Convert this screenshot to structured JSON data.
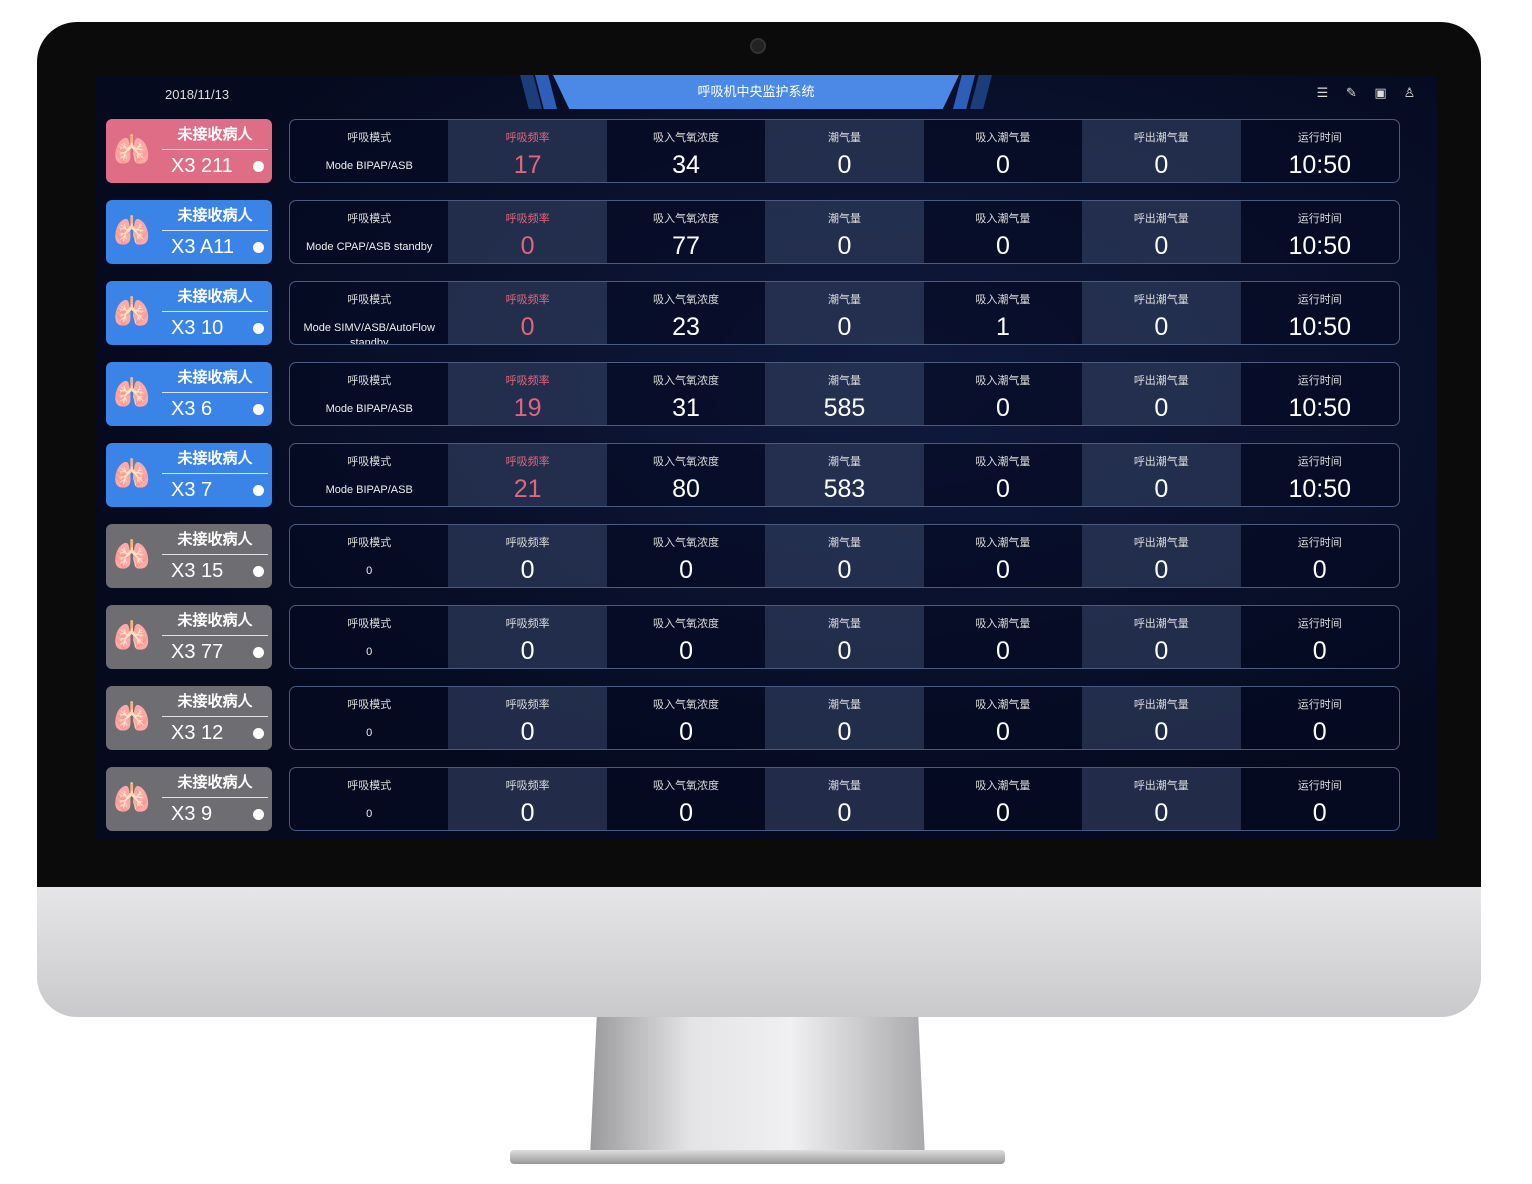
{
  "header": {
    "date": "2018/11/13",
    "title": "呼吸机中央监护系统",
    "icons": [
      "list-icon",
      "edit-icon",
      "layout-icon",
      "user-icon"
    ]
  },
  "colors": {
    "pink": "#df6d86",
    "blue": "#3a84e8",
    "gray": "#6e6e72",
    "alert_text": "#e0657e",
    "title_bar": "#4a8ae6"
  },
  "columns": [
    "呼吸模式",
    "呼吸频率",
    "吸入气氧浓度",
    "潮气量",
    "吸入潮气量",
    "呼出潮气量",
    "运行时间"
  ],
  "rows": [
    {
      "status": "未接收病人",
      "bed": "X3 211",
      "color": "pink",
      "mode": "Mode BIPAP/ASB",
      "values": [
        "17",
        "34",
        "0",
        "0",
        "0",
        "10:50"
      ],
      "alert": true
    },
    {
      "status": "未接收病人",
      "bed": "X3 A11",
      "color": "blue",
      "mode": "Mode CPAP/ASB standby",
      "values": [
        "0",
        "77",
        "0",
        "0",
        "0",
        "10:50"
      ],
      "alert": true
    },
    {
      "status": "未接收病人",
      "bed": "X3 10",
      "color": "blue",
      "mode": "Mode SIMV/ASB/AutoFlow standby",
      "values": [
        "0",
        "23",
        "0",
        "1",
        "0",
        "10:50"
      ],
      "alert": true
    },
    {
      "status": "未接收病人",
      "bed": "X3 6",
      "color": "blue",
      "mode": "Mode BIPAP/ASB",
      "values": [
        "19",
        "31",
        "585",
        "0",
        "0",
        "10:50"
      ],
      "alert": true
    },
    {
      "status": "未接收病人",
      "bed": "X3 7",
      "color": "blue",
      "mode": "Mode BIPAP/ASB",
      "values": [
        "21",
        "80",
        "583",
        "0",
        "0",
        "10:50"
      ],
      "alert": true
    },
    {
      "status": "未接收病人",
      "bed": "X3 15",
      "color": "gray",
      "mode": "0",
      "values": [
        "0",
        "0",
        "0",
        "0",
        "0",
        "0"
      ],
      "alert": false
    },
    {
      "status": "未接收病人",
      "bed": "X3 77",
      "color": "gray",
      "mode": "0",
      "values": [
        "0",
        "0",
        "0",
        "0",
        "0",
        "0"
      ],
      "alert": false
    },
    {
      "status": "未接收病人",
      "bed": "X3 12",
      "color": "gray",
      "mode": "0",
      "values": [
        "0",
        "0",
        "0",
        "0",
        "0",
        "0"
      ],
      "alert": false
    },
    {
      "status": "未接收病人",
      "bed": "X3 9",
      "color": "gray",
      "mode": "0",
      "values": [
        "0",
        "0",
        "0",
        "0",
        "0",
        "0"
      ],
      "alert": false
    }
  ]
}
